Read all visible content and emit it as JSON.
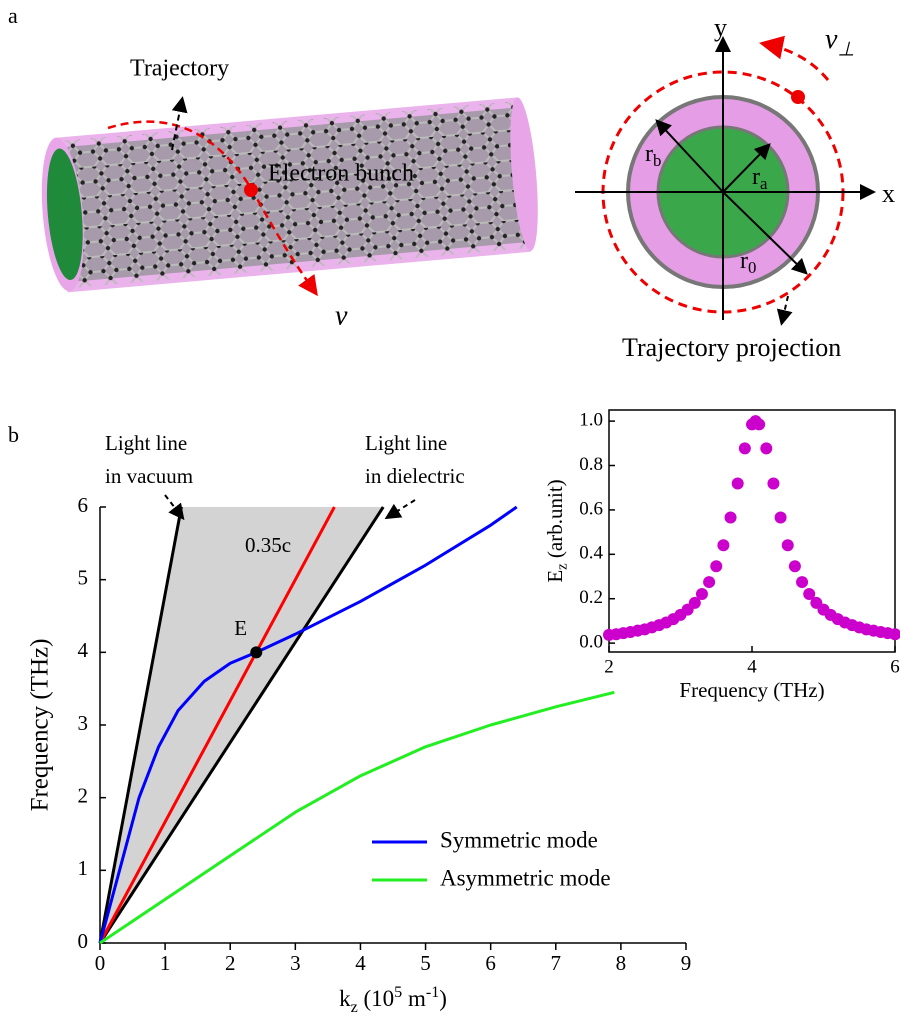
{
  "panel_labels": [
    "a",
    "b"
  ],
  "panel_a": {
    "trajectory": "Trajectory",
    "electron_bunch": "Electron bunch",
    "v": "v",
    "v_perp": [
      "v",
      "⊥"
    ],
    "axis_y": "y",
    "axis_x": "x",
    "r_b": [
      "r",
      "b"
    ],
    "r_a": [
      "r",
      "a"
    ],
    "r_0": [
      "r",
      "0"
    ],
    "trajectory_projection": "Trajectory projection"
  },
  "chart_data": [
    {
      "type": "line",
      "x_label": [
        "k",
        "z",
        " (10",
        "5",
        " m",
        "-1",
        ")"
      ],
      "y_label": "Frequency (THz)",
      "xlim": [
        0,
        9
      ],
      "xticks": [
        0,
        1,
        2,
        3,
        4,
        5,
        6,
        7,
        8,
        9
      ],
      "ylim": [
        0,
        6
      ],
      "yticks": [
        0,
        1,
        2,
        3,
        4,
        5,
        6
      ],
      "series": [
        {
          "name": "Symmetric mode",
          "color": "#0000ff",
          "x": [
            0,
            0.3,
            0.6,
            0.9,
            1.2,
            1.6,
            2.0,
            2.4,
            3.0,
            4.0,
            5.0,
            6.0,
            6.4
          ],
          "values": [
            0,
            1.0,
            2.0,
            2.7,
            3.2,
            3.6,
            3.85,
            4.0,
            4.25,
            4.7,
            5.2,
            5.75,
            6.0
          ]
        },
        {
          "name": "Asymmetric mode",
          "color": "#22ee22",
          "x": [
            0,
            1,
            2,
            3,
            4,
            5,
            6,
            7,
            7.9
          ],
          "values": [
            0,
            0.6,
            1.2,
            1.8,
            2.3,
            2.7,
            3.0,
            3.25,
            3.45
          ]
        }
      ],
      "reference_lines": [
        {
          "label": [
            "Light line",
            "in vacuum"
          ],
          "color": "#000000",
          "x": [
            0,
            1.25
          ],
          "values": [
            0,
            6
          ]
        },
        {
          "label": [
            "Light line",
            "in dielectric"
          ],
          "color": "#000000",
          "x": [
            0,
            4.35
          ],
          "values": [
            0,
            6
          ]
        },
        {
          "label": "0.35c",
          "color": "#ff0000",
          "x": [
            0,
            3.6
          ],
          "values": [
            0,
            6
          ]
        }
      ],
      "shaded_region_color": "#d3d3d3",
      "point": {
        "label": "E",
        "x": 2.4,
        "value": 4.0
      },
      "legend": "lower right"
    },
    {
      "type": "scatter",
      "x_label": "Frequency (THz)",
      "y_label": [
        "E",
        "z",
        " (arb.unit)"
      ],
      "xlim": [
        2,
        6
      ],
      "xticks": [
        2,
        4,
        6
      ],
      "ylim": [
        -0.04,
        1.05
      ],
      "yticks": [
        {
          "value": 0,
          "label": "0.0"
        },
        {
          "value": 0.2,
          "label": "0.2"
        },
        {
          "value": 0.4,
          "label": "0.4"
        },
        {
          "value": 0.6,
          "label": "0.6"
        },
        {
          "value": 0.8,
          "label": "0.8"
        },
        {
          "value": 1,
          "label": "1.0"
        }
      ],
      "color": "#cc00cc",
      "x": [
        2.0,
        2.1,
        2.2,
        2.3,
        2.4,
        2.5,
        2.6,
        2.7,
        2.8,
        2.9,
        3.0,
        3.1,
        3.2,
        3.3,
        3.4,
        3.5,
        3.6,
        3.7,
        3.8,
        3.9,
        4.0,
        4.05,
        4.1,
        4.2,
        4.3,
        4.4,
        4.5,
        4.6,
        4.7,
        4.8,
        4.9,
        5.0,
        5.1,
        5.2,
        5.3,
        5.4,
        5.5,
        5.6,
        5.7,
        5.8,
        5.9,
        6.0
      ],
      "values": [
        0.037,
        0.04,
        0.045,
        0.05,
        0.056,
        0.062,
        0.071,
        0.081,
        0.093,
        0.108,
        0.127,
        0.151,
        0.181,
        0.221,
        0.275,
        0.346,
        0.441,
        0.566,
        0.719,
        0.877,
        0.985,
        1.0,
        0.985,
        0.877,
        0.719,
        0.566,
        0.441,
        0.346,
        0.275,
        0.221,
        0.181,
        0.151,
        0.127,
        0.108,
        0.093,
        0.081,
        0.071,
        0.062,
        0.056,
        0.05,
        0.045,
        0.04
      ]
    }
  ]
}
